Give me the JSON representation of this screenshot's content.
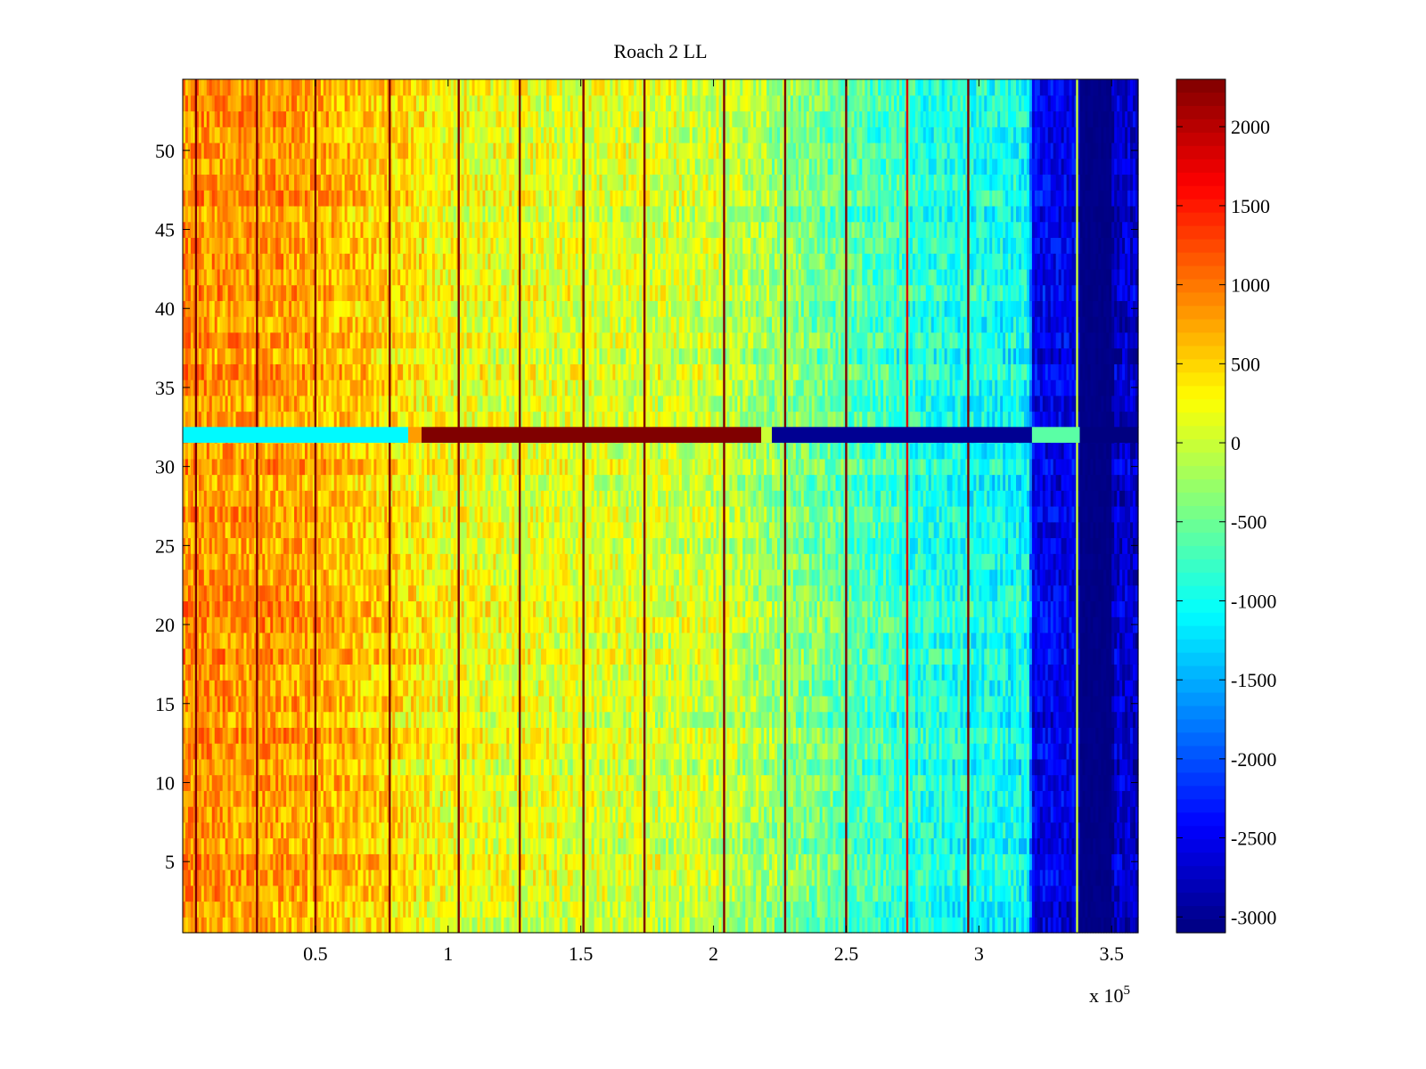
{
  "chart_data": {
    "type": "heatmap",
    "title": "Roach 2 LL",
    "xlabel": "",
    "ylabel": "",
    "x_range": [
      0,
      360000
    ],
    "y_range": [
      0.5,
      54.5
    ],
    "x_ticks": [
      50000,
      100000,
      150000,
      200000,
      250000,
      300000,
      350000
    ],
    "x_tick_labels": [
      "0.5",
      "1",
      "1.5",
      "2",
      "2.5",
      "3",
      "3.5"
    ],
    "x_exponent_label": "x 10",
    "x_exponent_power": "5",
    "y_ticks": [
      5,
      10,
      15,
      20,
      25,
      30,
      35,
      40,
      45,
      50
    ],
    "y_tick_labels": [
      "5",
      "10",
      "15",
      "20",
      "25",
      "30",
      "35",
      "40",
      "45",
      "50"
    ],
    "colorbar": {
      "colormap": "jet",
      "range": [
        -3100,
        2300
      ],
      "ticks": [
        2000,
        1500,
        1000,
        500,
        0,
        -500,
        -1000,
        -1500,
        -2000,
        -2500,
        -3000
      ],
      "tick_labels": [
        "2000",
        "1500",
        "1000",
        "500",
        "0",
        "-500",
        "-1000",
        "-1500",
        "-2000",
        "-2500",
        "-3000"
      ]
    },
    "rows": 54,
    "row_baseline_profile": [
      {
        "x": 0,
        "value": 850
      },
      {
        "x": 40000,
        "value": 780
      },
      {
        "x": 80000,
        "value": 450
      },
      {
        "x": 100000,
        "value": 200
      },
      {
        "x": 150000,
        "value": 100
      },
      {
        "x": 200000,
        "value": 0
      },
      {
        "x": 225000,
        "value": -300
      },
      {
        "x": 250000,
        "value": -600
      },
      {
        "x": 280000,
        "value": -900
      },
      {
        "x": 319000,
        "value": -1050
      },
      {
        "x": 320000,
        "value": -2500
      },
      {
        "x": 337000,
        "value": -2550
      },
      {
        "x": 338000,
        "value": -3100
      },
      {
        "x": 350000,
        "value": -3100
      },
      {
        "x": 351000,
        "value": -2700
      },
      {
        "x": 360000,
        "value": -2700
      }
    ],
    "vertical_stripes": [
      {
        "x": 5000,
        "value": 2300
      },
      {
        "x": 28000,
        "value": 2300
      },
      {
        "x": 50000,
        "value": 2300
      },
      {
        "x": 78000,
        "value": 2300
      },
      {
        "x": 104000,
        "value": 2300
      },
      {
        "x": 127000,
        "value": 2300
      },
      {
        "x": 151000,
        "value": 2300
      },
      {
        "x": 174000,
        "value": 2300
      },
      {
        "x": 204000,
        "value": 2300
      },
      {
        "x": 227000,
        "value": 2300
      },
      {
        "x": 250000,
        "value": 2300
      },
      {
        "x": 273000,
        "value": 1800
      },
      {
        "x": 296000,
        "value": 2300
      },
      {
        "x": 337000,
        "value": 0
      }
    ],
    "anomalous_row": {
      "row": 32,
      "segments": [
        {
          "x_start": 0,
          "x_end": 85000,
          "value": -1100
        },
        {
          "x_start": 85000,
          "x_end": 90000,
          "value": 800
        },
        {
          "x_start": 90000,
          "x_end": 218000,
          "value": 2300
        },
        {
          "x_start": 218000,
          "x_end": 222000,
          "value": 0
        },
        {
          "x_start": 222000,
          "x_end": 320000,
          "value": -3000
        },
        {
          "x_start": 320000,
          "x_end": 338000,
          "value": -600
        },
        {
          "x_start": 338000,
          "x_end": 360000,
          "value": -3100
        }
      ]
    }
  }
}
